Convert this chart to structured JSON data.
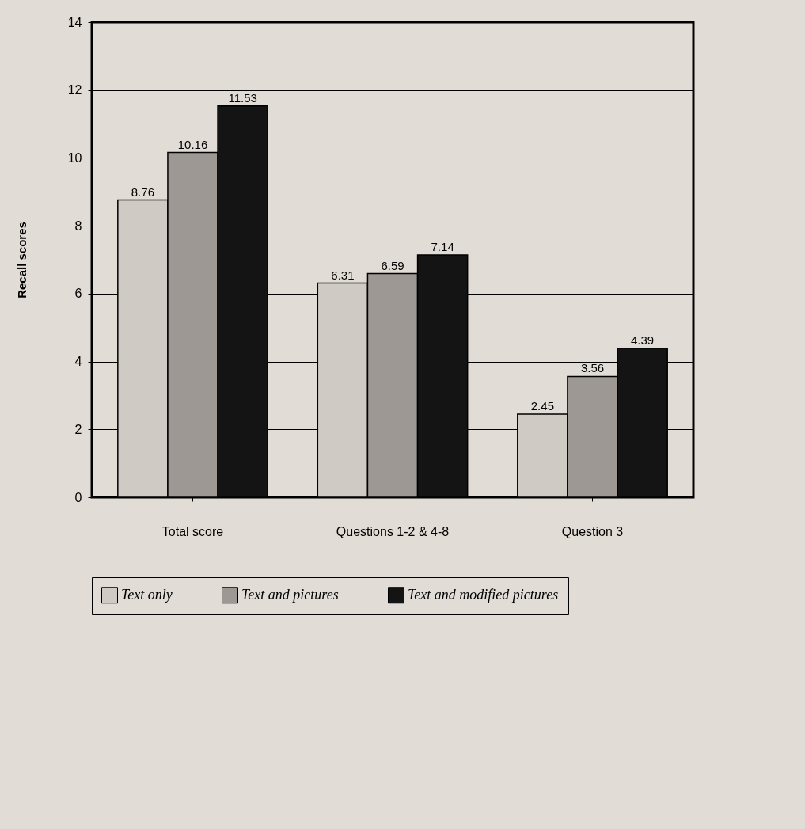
{
  "chart_data": {
    "type": "bar",
    "ylabel": "Recall  scores",
    "categories": [
      "Total score",
      "Questions 1-2 & 4-8",
      "Question 3"
    ],
    "series": [
      {
        "name": "Text only",
        "color": "#cfcac4",
        "values": [
          8.76,
          6.31,
          2.45
        ]
      },
      {
        "name": "Text and pictures",
        "color": "#9d9893",
        "values": [
          10.16,
          6.59,
          3.56
        ]
      },
      {
        "name": "Text and modified pictures",
        "color": "#141414",
        "values": [
          11.53,
          7.14,
          4.39
        ]
      }
    ],
    "ylim": [
      0,
      14
    ],
    "yticks": [
      0,
      2,
      4,
      6,
      8,
      10,
      12,
      14
    ],
    "grid": "y",
    "legend": "bottom",
    "data_labels": true
  }
}
